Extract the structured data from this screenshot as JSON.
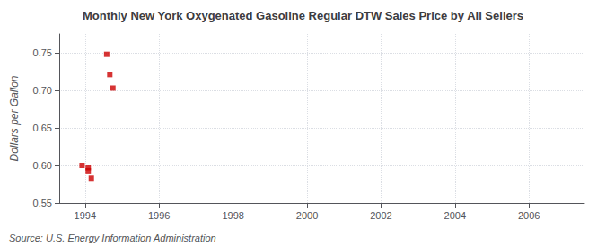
{
  "chart_data": {
    "type": "scatter",
    "title": "Monthly New York Oxygenated Gasoline Regular DTW Sales Price by All Sellers",
    "ylabel": "Dollars per Gallon",
    "annotations": [
      "Source: U.S. Energy Information Administration"
    ],
    "x": [
      1993.917,
      1994.083,
      1994.167,
      1994.583,
      1994.667,
      1994.75,
      1994.083
    ],
    "values": [
      0.6,
      0.593,
      0.583,
      0.748,
      0.721,
      0.703,
      0.597
    ],
    "color": "#cc0000",
    "marker": "square",
    "xlim": [
      1993.3,
      2007.5
    ],
    "xticks": [
      1994,
      1996,
      1998,
      2000,
      2002,
      2004,
      2006
    ],
    "ylim": [
      0.55,
      0.775
    ],
    "yticks": [
      0.55,
      {
        "value": 0.6,
        "label": "0.60"
      },
      0.65,
      {
        "value": 0.7,
        "label": "0.70"
      },
      0.75
    ],
    "grid": true
  }
}
